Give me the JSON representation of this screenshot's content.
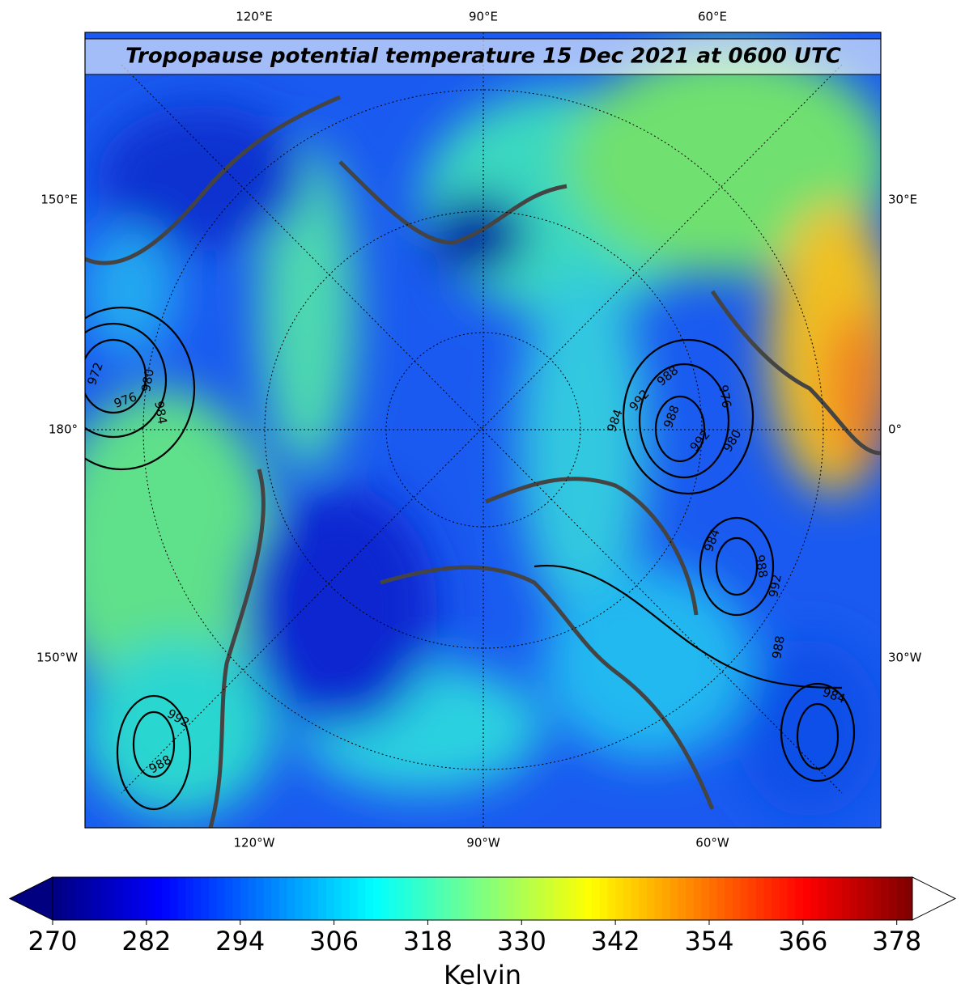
{
  "title": "Tropopause potential temperature 15 Dec 2021 at 0600 UTC",
  "map": {
    "top_labels": [
      "120°E",
      "90°E",
      "60°E"
    ],
    "bottom_labels": [
      "120°W",
      "90°W",
      "60°W"
    ],
    "left_labels": [
      "150°E",
      "180°",
      "150°W"
    ],
    "right_labels": [
      "30°E",
      "0°",
      "30°W"
    ],
    "contour_labels": [
      972,
      976,
      980,
      984,
      988,
      992,
      984,
      988,
      992,
      976,
      980,
      984,
      988,
      992,
      988,
      984,
      988,
      992
    ]
  },
  "colorbar": {
    "colormap": "jet",
    "clim": [
      270,
      380
    ],
    "ticks": [
      270,
      282,
      294,
      306,
      318,
      330,
      342,
      354,
      366,
      378
    ],
    "label": "Kelvin"
  }
}
